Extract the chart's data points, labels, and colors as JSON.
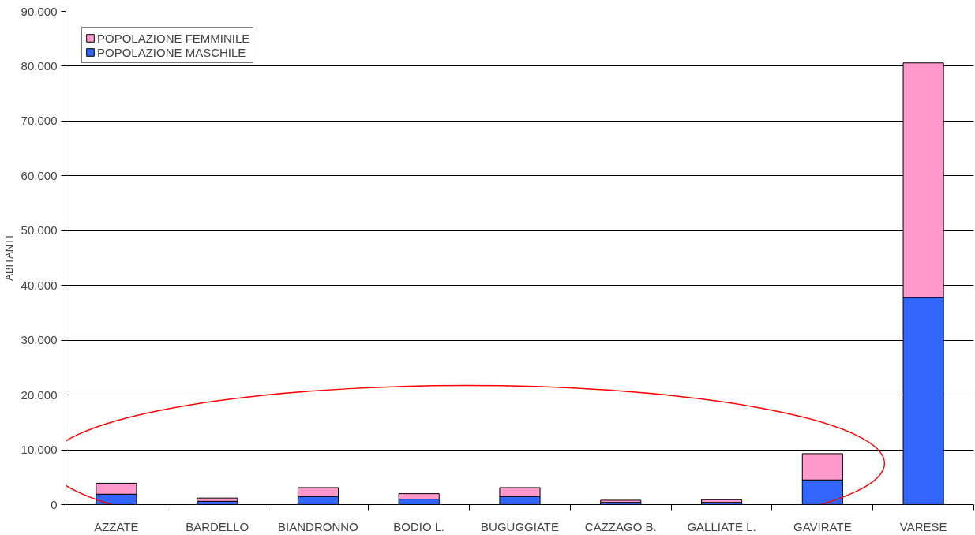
{
  "chart_data": {
    "type": "bar",
    "stacked": true,
    "ylabel": "ABITANTI",
    "categories": [
      "AZZATE",
      "BARDELLO",
      "BIANDRONNO",
      "BODIO L.",
      "BUGUGGIATE",
      "CAZZAGO B.",
      "GALLIATE L.",
      "GAVIRATE",
      "VARESE"
    ],
    "series": [
      {
        "name": "POPOLAZIONE MASCHILE",
        "color": "#3366ff",
        "values": [
          1900,
          600,
          1500,
          1000,
          1500,
          400,
          400,
          4500,
          37800
        ]
      },
      {
        "name": "POPOLAZIONE FEMMINILE",
        "color": "#ff99cc",
        "values": [
          2000,
          600,
          1600,
          1000,
          1600,
          400,
          500,
          4800,
          42800
        ]
      }
    ],
    "ylim": [
      0,
      90000
    ],
    "yticks": [
      0,
      {
        "value": 10000,
        "label": "10.000"
      },
      {
        "value": 20000,
        "label": "20.000"
      },
      {
        "value": 30000,
        "label": "30.000"
      },
      {
        "value": 40000,
        "label": "40.000"
      },
      {
        "value": 50000,
        "label": "50.000"
      },
      {
        "value": 60000,
        "label": "60.000"
      },
      {
        "value": 70000,
        "label": "70.000"
      },
      {
        "value": 80000,
        "label": "80.000"
      },
      {
        "value": 90000,
        "label": "90.000"
      }
    ],
    "grid": "y",
    "legend": "top left"
  }
}
